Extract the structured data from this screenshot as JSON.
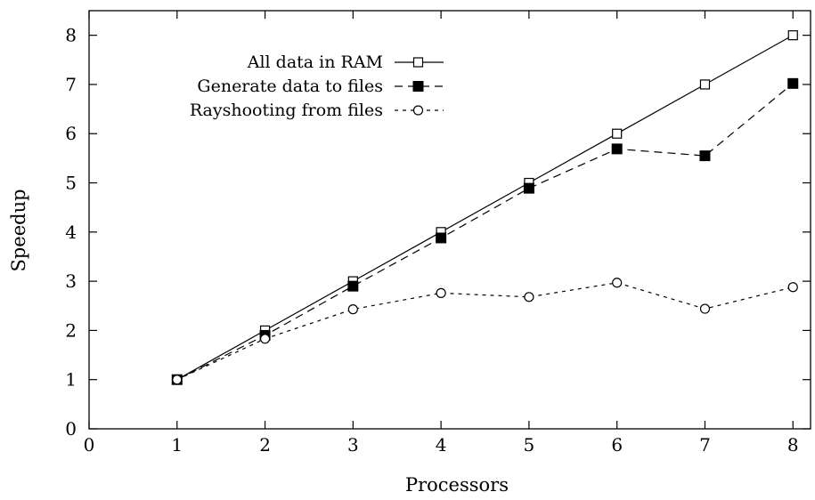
{
  "chart_data": {
    "type": "line",
    "title": "",
    "xlabel": "Processors",
    "ylabel": "Speedup",
    "xlim": [
      0,
      8.2
    ],
    "ylim": [
      0,
      8.5
    ],
    "xticks": [
      0,
      1,
      2,
      3,
      4,
      5,
      6,
      7,
      8
    ],
    "yticks": [
      0,
      1,
      2,
      3,
      4,
      5,
      6,
      7,
      8
    ],
    "grid": false,
    "legend_position": "top-left",
    "series": [
      {
        "name": "All data in RAM",
        "line": "solid",
        "marker": "open-square",
        "color": "#000000",
        "x": [
          1,
          2,
          3,
          4,
          5,
          6,
          7,
          8
        ],
        "y": [
          1.0,
          2.0,
          3.0,
          4.0,
          5.0,
          6.0,
          7.0,
          8.0
        ]
      },
      {
        "name": "Generate data to files",
        "line": "dashed",
        "marker": "filled-square",
        "color": "#000000",
        "x": [
          1,
          2,
          3,
          4,
          5,
          6,
          7,
          8
        ],
        "y": [
          1.0,
          1.9,
          2.9,
          3.88,
          4.89,
          5.69,
          5.55,
          7.02
        ]
      },
      {
        "name": "Rayshooting from files",
        "line": "dotted",
        "marker": "open-circle",
        "color": "#000000",
        "x": [
          1,
          2,
          3,
          4,
          5,
          6,
          7,
          8
        ],
        "y": [
          1.0,
          1.83,
          2.43,
          2.76,
          2.68,
          2.97,
          2.44,
          2.88
        ]
      }
    ]
  }
}
